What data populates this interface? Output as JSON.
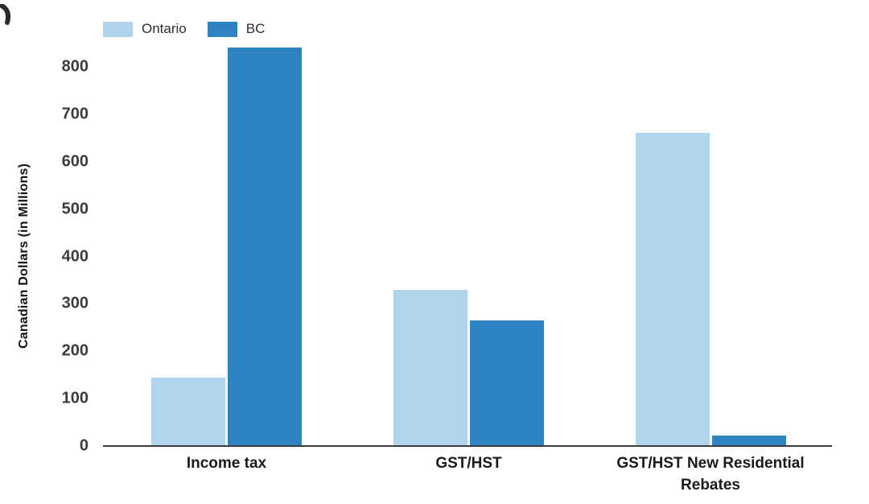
{
  "chart_data": {
    "type": "bar",
    "title": "",
    "ylabel": "Canadian Dollars (in Millions)",
    "categories": [
      "Income tax",
      "GST/HST",
      "GST/HST New Residential Rebates"
    ],
    "series": [
      {
        "name": "Ontario",
        "color": "#AFD4EC",
        "values": [
          145,
          330,
          660
        ]
      },
      {
        "name": "BC",
        "color": "#2E84C1",
        "values": [
          840,
          265,
          22
        ]
      }
    ],
    "ylim": [
      0,
      850
    ],
    "yticks": [
      0,
      100,
      200,
      300,
      400,
      500,
      600,
      700,
      800
    ],
    "legend_position": "top-left",
    "grid": false,
    "colors": {
      "axis": "#3c3c3c",
      "tick_labels": "#3d3d3d",
      "category_labels": "#1a1a1a",
      "ontario": "#AFD4EC",
      "bc": "#2E84C1"
    }
  }
}
